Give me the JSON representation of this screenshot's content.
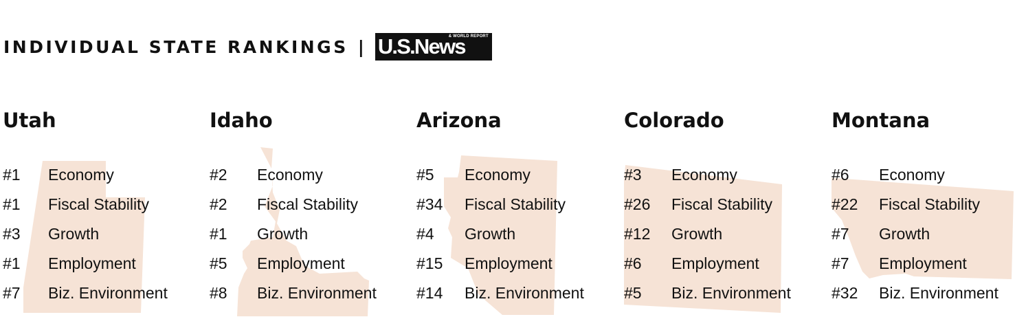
{
  "header": {
    "title": "INDIVIDUAL STATE RANKINGS",
    "separator": "|",
    "logo_text": "U.S.News",
    "logo_subtext": "& WORLD REPORT"
  },
  "colors": {
    "state_fill": "#f6e3d6",
    "text": "#111111",
    "logo_bg": "#111111"
  },
  "states": [
    {
      "name": "Utah",
      "rankings": [
        {
          "rank": "#1",
          "category": "Economy"
        },
        {
          "rank": "#1",
          "category": "Fiscal Stability"
        },
        {
          "rank": "#3",
          "category": "Growth"
        },
        {
          "rank": "#1",
          "category": "Employment"
        },
        {
          "rank": "#7",
          "category": "Biz. Environment"
        }
      ]
    },
    {
      "name": "Idaho",
      "rankings": [
        {
          "rank": "#2",
          "category": "Economy"
        },
        {
          "rank": "#2",
          "category": "Fiscal Stability"
        },
        {
          "rank": "#1",
          "category": "Growth"
        },
        {
          "rank": "#5",
          "category": "Employment"
        },
        {
          "rank": "#8",
          "category": "Biz. Environment"
        }
      ]
    },
    {
      "name": "Arizona",
      "rankings": [
        {
          "rank": "#5",
          "category": "Economy"
        },
        {
          "rank": "#34",
          "category": "Fiscal Stability"
        },
        {
          "rank": "#4",
          "category": "Growth"
        },
        {
          "rank": "#15",
          "category": "Employment"
        },
        {
          "rank": "#14",
          "category": "Biz. Environment"
        }
      ]
    },
    {
      "name": "Colorado",
      "rankings": [
        {
          "rank": "#3",
          "category": "Economy"
        },
        {
          "rank": "#26",
          "category": "Fiscal Stability"
        },
        {
          "rank": "#12",
          "category": "Growth"
        },
        {
          "rank": "#6",
          "category": "Employment"
        },
        {
          "rank": "#5",
          "category": "Biz. Environment"
        }
      ]
    },
    {
      "name": "Montana",
      "rankings": [
        {
          "rank": "#6",
          "category": "Economy"
        },
        {
          "rank": "#22",
          "category": "Fiscal Stability"
        },
        {
          "rank": "#7",
          "category": "Growth"
        },
        {
          "rank": "#7",
          "category": "Employment"
        },
        {
          "rank": "#32",
          "category": "Biz. Environment"
        }
      ]
    }
  ]
}
